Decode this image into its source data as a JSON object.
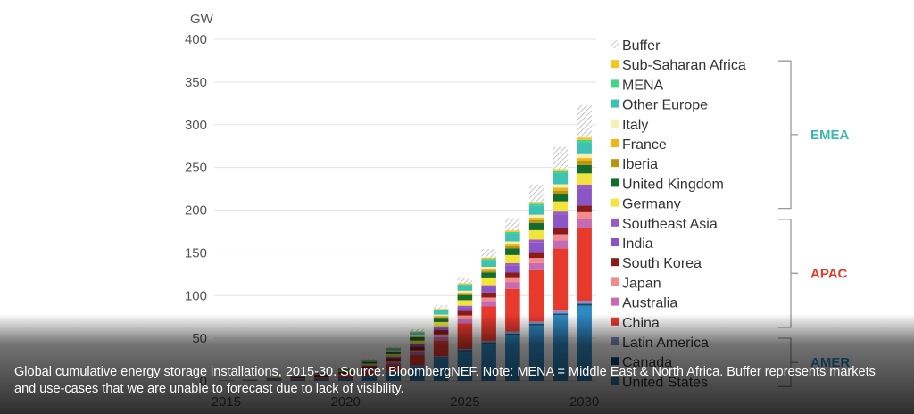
{
  "chart_data": {
    "type": "bar",
    "stacked": true,
    "ylabel": "GW",
    "ylim": [
      0,
      400
    ],
    "yticks": [
      0,
      50,
      100,
      150,
      200,
      250,
      300,
      350,
      400
    ],
    "x": [
      2015,
      2016,
      2017,
      2018,
      2019,
      2020,
      2021,
      2022,
      2023,
      2024,
      2025,
      2026,
      2027,
      2028,
      2029,
      2030
    ],
    "x_tick_labels": [
      "2015",
      "2020",
      "2025",
      "2030"
    ],
    "grid": true,
    "legend_position": "right",
    "series": [
      {
        "name": "United States",
        "color": "#2F8AC4",
        "values": [
          0.5,
          0.8,
          1.2,
          1.6,
          2.2,
          3,
          6,
          10,
          17,
          27,
          35,
          44,
          54,
          65,
          77,
          88
        ]
      },
      {
        "name": "Canada",
        "color": "#0E4D70",
        "values": [
          0,
          0,
          0,
          0,
          0,
          0,
          0.2,
          0.3,
          0.5,
          0.8,
          1,
          1.2,
          1.5,
          1.8,
          2.1,
          2.4
        ]
      },
      {
        "name": "Latin America",
        "color": "#8C8FC4",
        "values": [
          0,
          0,
          0,
          0,
          0.1,
          0.1,
          0.3,
          0.5,
          0.8,
          1.2,
          1.6,
          2,
          2.4,
          2.8,
          3.2,
          3.6
        ]
      },
      {
        "name": "China",
        "color": "#E8392D",
        "values": [
          0,
          0.1,
          0.3,
          0.8,
          1.5,
          3,
          5,
          8,
          12,
          18,
          30,
          40,
          50,
          60,
          73,
          85
        ]
      },
      {
        "name": "Australia",
        "color": "#C46BB3",
        "values": [
          0,
          0,
          0.1,
          0.3,
          0.5,
          0.9,
          1.5,
          2.5,
          3.5,
          4.5,
          5.5,
          6.5,
          7.5,
          8.5,
          9.5,
          10.5
        ]
      },
      {
        "name": "Japan",
        "color": "#F28B8B",
        "values": [
          0.1,
          0.2,
          0.3,
          0.4,
          0.5,
          0.7,
          1,
          1.5,
          2,
          3,
          3.5,
          4,
          5,
          6,
          7,
          8
        ]
      },
      {
        "name": "South Korea",
        "color": "#8B1A1A",
        "values": [
          0,
          0.3,
          0.9,
          1.8,
          2.5,
          3,
          3.5,
          4,
          4.5,
          5,
          5.5,
          6,
          6.5,
          7,
          7.5,
          8
        ]
      },
      {
        "name": "India",
        "color": "#8A55C6",
        "values": [
          0,
          0,
          0,
          0,
          0,
          0.2,
          0.5,
          1,
          2,
          3,
          4,
          6,
          8,
          11,
          15,
          20
        ]
      },
      {
        "name": "Southeast Asia",
        "color": "#9A5CC0",
        "values": [
          0,
          0,
          0,
          0,
          0.1,
          0.2,
          0.4,
          0.7,
          1,
          1.5,
          2,
          2.5,
          3,
          3.5,
          4,
          4.5
        ]
      },
      {
        "name": "Germany",
        "color": "#F2E43A",
        "values": [
          0.1,
          0.2,
          0.3,
          0.5,
          0.8,
          1,
          2,
          3,
          4,
          5,
          6.5,
          8,
          9.5,
          11,
          12,
          13
        ]
      },
      {
        "name": "United Kingdom",
        "color": "#146B2E",
        "values": [
          0,
          0,
          0.2,
          0.5,
          0.8,
          1.2,
          2,
          3,
          4,
          5,
          6,
          7,
          8,
          8.5,
          9,
          10
        ]
      },
      {
        "name": "Iberia",
        "color": "#B8950F",
        "values": [
          0,
          0,
          0,
          0,
          0,
          0.1,
          0.2,
          0.3,
          0.6,
          1,
          1.5,
          2,
          2.5,
          3,
          3.5,
          4
        ]
      },
      {
        "name": "France",
        "color": "#F2B517",
        "values": [
          0,
          0,
          0,
          0,
          0.1,
          0.2,
          0.3,
          0.5,
          0.8,
          1.2,
          1.6,
          2,
          2.5,
          3,
          3.5,
          4
        ]
      },
      {
        "name": "Italy",
        "color": "#F8F0B0",
        "values": [
          0,
          0,
          0,
          0,
          0.1,
          0.2,
          0.4,
          0.6,
          1,
          1.5,
          2,
          2.5,
          3,
          3.5,
          4,
          4.5
        ]
      },
      {
        "name": "Other Europe",
        "color": "#3EC2B4",
        "values": [
          0,
          0.1,
          0.2,
          0.4,
          0.7,
          1,
          1.5,
          2.5,
          3.5,
          5,
          6.5,
          8,
          9.5,
          11,
          13,
          14
        ]
      },
      {
        "name": "MENA",
        "color": "#43D68A",
        "values": [
          0,
          0,
          0,
          0,
          0,
          0.1,
          0.2,
          0.3,
          0.5,
          0.8,
          1,
          1.3,
          1.6,
          2,
          2.3,
          2.6
        ]
      },
      {
        "name": "Sub-Saharan Africa",
        "color": "#F5C421",
        "values": [
          0,
          0,
          0,
          0,
          0,
          0.1,
          0.2,
          0.4,
          0.6,
          0.9,
          1.2,
          1.5,
          1.8,
          2.1,
          2.4,
          2.8
        ]
      },
      {
        "name": "Buffer",
        "color": "hatch",
        "values": [
          0,
          0,
          0,
          0,
          0,
          0,
          0.5,
          1.2,
          2.5,
          4,
          6,
          10,
          14,
          20,
          26,
          38
        ]
      }
    ],
    "groups": [
      {
        "name": "EMEA",
        "color": "#3EB8AC",
        "first": "Sub-Saharan Africa",
        "last": "Germany"
      },
      {
        "name": "APAC",
        "color": "#E8392D",
        "first": "Southeast Asia",
        "last": "China"
      },
      {
        "name": "AMER",
        "color": "#2F8AC4",
        "first": "Latin America",
        "last": "United States"
      }
    ]
  },
  "caption": {
    "text": "Global cumulative energy storage installations, 2015-30. Source: BloombergNEF. Note: MENA = Middle East & North Africa. Buffer represents markets and use-cases that we are unable to forecast due to lack of visibility."
  }
}
